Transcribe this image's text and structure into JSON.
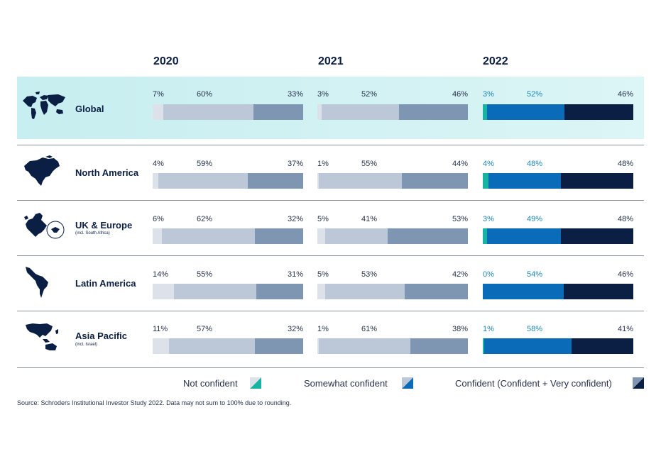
{
  "years": [
    "2020",
    "2021",
    "2022"
  ],
  "legend": {
    "not_confident": "Not confident",
    "somewhat_confident": "Somewhat confident",
    "confident": "Confident (Confident + Very confident)"
  },
  "source": "Source: Schroders Institutional Investor Study 2022. Data may not sum to 100% due to rounding.",
  "colors": {
    "old_not": "#dde2ea",
    "old_somewhat": "#bcc8d8",
    "old_confident": "#7f96b3",
    "new_not": "#17b3a3",
    "new_somewhat": "#0a6cb8",
    "new_confident": "#0b1f44",
    "highlight_bg": "#cdeff1",
    "navy": "#0b1f44"
  },
  "chart_data": {
    "type": "bar",
    "stacked": true,
    "orientation": "horizontal",
    "categories": [
      "Global",
      "North America",
      "UK & Europe",
      "Latin America",
      "Asia Pacific"
    ],
    "category_notes": [
      "",
      "",
      "(incl. South Africa)",
      "",
      "(incl. Israel)"
    ],
    "years": [
      "2020",
      "2021",
      "2022"
    ],
    "series": [
      {
        "name": "Not confident",
        "values": {
          "2020": [
            7,
            4,
            6,
            14,
            11
          ],
          "2021": [
            3,
            1,
            5,
            5,
            1
          ],
          "2022": [
            3,
            4,
            3,
            0,
            1
          ]
        }
      },
      {
        "name": "Somewhat confident",
        "values": {
          "2020": [
            60,
            59,
            62,
            55,
            57
          ],
          "2021": [
            52,
            55,
            41,
            53,
            61
          ],
          "2022": [
            52,
            48,
            49,
            54,
            58
          ]
        }
      },
      {
        "name": "Confident (Confident + Very confident)",
        "values": {
          "2020": [
            33,
            37,
            32,
            31,
            32
          ],
          "2021": [
            46,
            44,
            53,
            42,
            38
          ],
          "2022": [
            46,
            48,
            48,
            46,
            41
          ]
        }
      }
    ],
    "xlim": [
      0,
      100
    ],
    "highlighted_category": "Global"
  }
}
